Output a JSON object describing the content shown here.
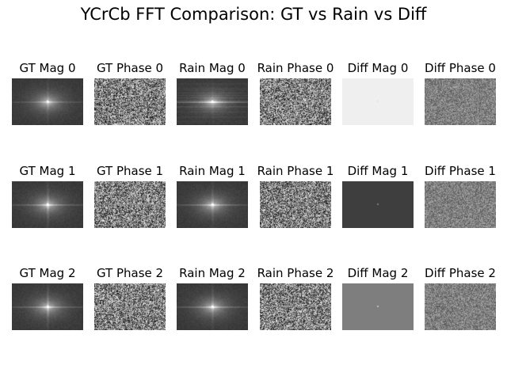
{
  "figure": {
    "title": "YCrCb FFT Comparison: GT vs Rain vs Diff"
  },
  "panels": [
    {
      "id": "gt-mag-0",
      "title": "GT Mag 0",
      "kind": "mag",
      "bg": "#3a3a3a",
      "center": "#ffffff",
      "hline": 0.25,
      "vline": 0.15
    },
    {
      "id": "gt-phase-0",
      "title": "GT Phase 0",
      "kind": "phase",
      "bg": "#808080"
    },
    {
      "id": "rain-mag-0",
      "title": "Rain Mag 0",
      "kind": "mag",
      "bg": "#3a3a3a",
      "center": "#ffffff",
      "hline": 0.45,
      "vline": 0.1,
      "streaks": true
    },
    {
      "id": "rain-phase-0",
      "title": "Rain Phase 0",
      "kind": "phase",
      "bg": "#808080"
    },
    {
      "id": "diff-mag-0",
      "title": "Diff Mag 0",
      "kind": "flat",
      "bg": "#efefef",
      "dot": "#e4e4e4"
    },
    {
      "id": "diff-phase-0",
      "title": "Diff Phase 0",
      "kind": "noise",
      "bg": "#7f7f7f"
    },
    {
      "id": "gt-mag-1",
      "title": "GT Mag 1",
      "kind": "mag",
      "bg": "#3c3c3c",
      "center": "#ffffff",
      "hline": 0.35,
      "vline": 0.25
    },
    {
      "id": "gt-phase-1",
      "title": "GT Phase 1",
      "kind": "phase",
      "bg": "#808080"
    },
    {
      "id": "rain-mag-1",
      "title": "Rain Mag 1",
      "kind": "mag",
      "bg": "#3c3c3c",
      "center": "#ffffff",
      "hline": 0.35,
      "vline": 0.2
    },
    {
      "id": "rain-phase-1",
      "title": "Rain Phase 1",
      "kind": "phase",
      "bg": "#808080"
    },
    {
      "id": "diff-mag-1",
      "title": "Diff Mag 1",
      "kind": "flat",
      "bg": "#3e3e3e",
      "dot": "#7a7a7a"
    },
    {
      "id": "diff-phase-1",
      "title": "Diff Phase 1",
      "kind": "noise",
      "bg": "#808080"
    },
    {
      "id": "gt-mag-2",
      "title": "GT Mag 2",
      "kind": "mag",
      "bg": "#3c3c3c",
      "center": "#ffffff",
      "hline": 0.35,
      "vline": 0.25
    },
    {
      "id": "gt-phase-2",
      "title": "GT Phase 2",
      "kind": "phase",
      "bg": "#808080"
    },
    {
      "id": "rain-mag-2",
      "title": "Rain Mag 2",
      "kind": "mag",
      "bg": "#3c3c3c",
      "center": "#ffffff",
      "hline": 0.35,
      "vline": 0.2
    },
    {
      "id": "rain-phase-2",
      "title": "Rain Phase 2",
      "kind": "phase",
      "bg": "#808080"
    },
    {
      "id": "diff-mag-2",
      "title": "Diff Mag 2",
      "kind": "flat",
      "bg": "#7e7e7e",
      "dot": "#bdbdbd"
    },
    {
      "id": "diff-phase-2",
      "title": "Diff Phase 2",
      "kind": "noise",
      "bg": "#7f7f7f"
    }
  ]
}
